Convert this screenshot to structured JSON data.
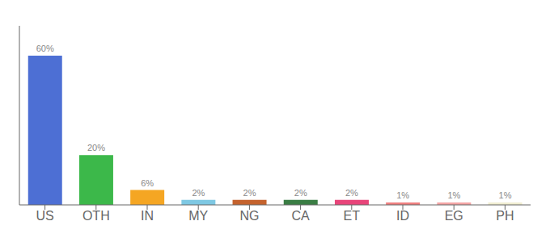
{
  "chart_data": {
    "type": "bar",
    "categories": [
      "US",
      "OTH",
      "IN",
      "MY",
      "NG",
      "CA",
      "ET",
      "ID",
      "EG",
      "PH"
    ],
    "values": [
      60,
      20,
      6,
      2,
      2,
      2,
      2,
      1,
      1,
      1
    ],
    "value_labels": [
      "60%",
      "20%",
      "6%",
      "2%",
      "2%",
      "2%",
      "2%",
      "1%",
      "1%",
      "1%"
    ],
    "colors": [
      "#4D6FD4",
      "#3CB84A",
      "#F5A623",
      "#7EC8E3",
      "#C4622D",
      "#3A7D44",
      "#E8457A",
      "#F08080",
      "#F4A5A5",
      "#F0EDD0"
    ],
    "ylim": [
      0,
      72
    ],
    "grid": false,
    "tick_labels": "x"
  }
}
